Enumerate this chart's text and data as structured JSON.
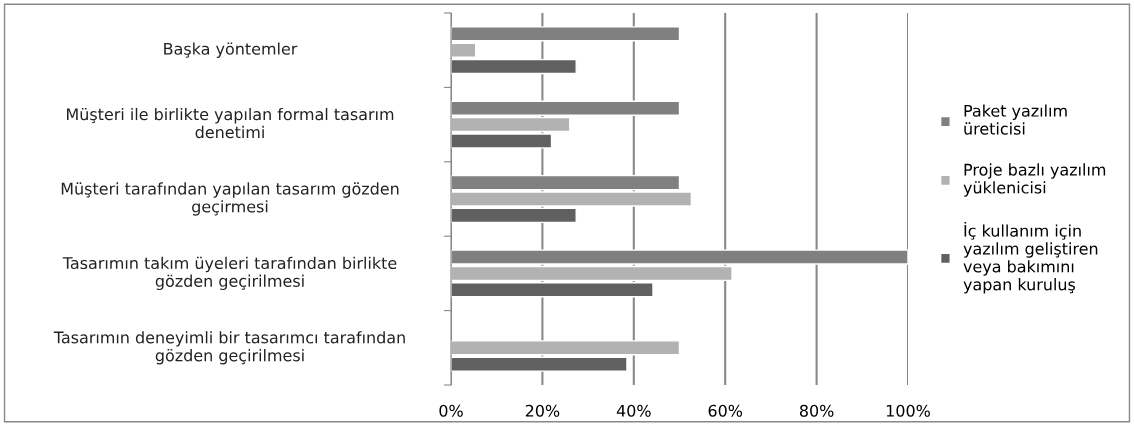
{
  "chart_data": {
    "type": "bar",
    "orientation": "horizontal",
    "categories": [
      "Başka yöntemler",
      "Müşteri ile birlikte yapılan formal tasarım\ndenetimi",
      "Müşteri tarafından yapılan tasarım gözden\ngeçirmesi",
      "Tasarımın takım üyeleri tarafından birlikte\ngözden geçirilmesi",
      "Tasarımın deneyimli bir tasarımcı tarafından\ngözden geçirilmesi"
    ],
    "series": [
      {
        "name": "Paket yazılım\nüreticisi",
        "color": "#808080",
        "values": [
          50,
          50,
          50,
          100,
          null
        ]
      },
      {
        "name": "Proje bazlı yazılım\nyüklenicisi",
        "color": "#b2b2b2",
        "values": [
          5.4,
          26,
          52.6,
          61.5,
          50
        ]
      },
      {
        "name": "İç kullanım için\nyazılım geliştiren\nveya bakımını\nyapan kuruluş",
        "color": "#606060",
        "values": [
          27.4,
          22,
          27.4,
          44.2,
          38.5
        ]
      }
    ],
    "xlim": [
      0,
      100
    ],
    "xticks": [
      {
        "value": 0,
        "label": "0%"
      },
      {
        "value": 20,
        "label": "20%"
      },
      {
        "value": 40,
        "label": "40%"
      },
      {
        "value": 60,
        "label": "60%"
      },
      {
        "value": 80,
        "label": "80%"
      },
      {
        "value": 100,
        "label": "100%"
      }
    ],
    "grid": "x",
    "legend": "right"
  }
}
